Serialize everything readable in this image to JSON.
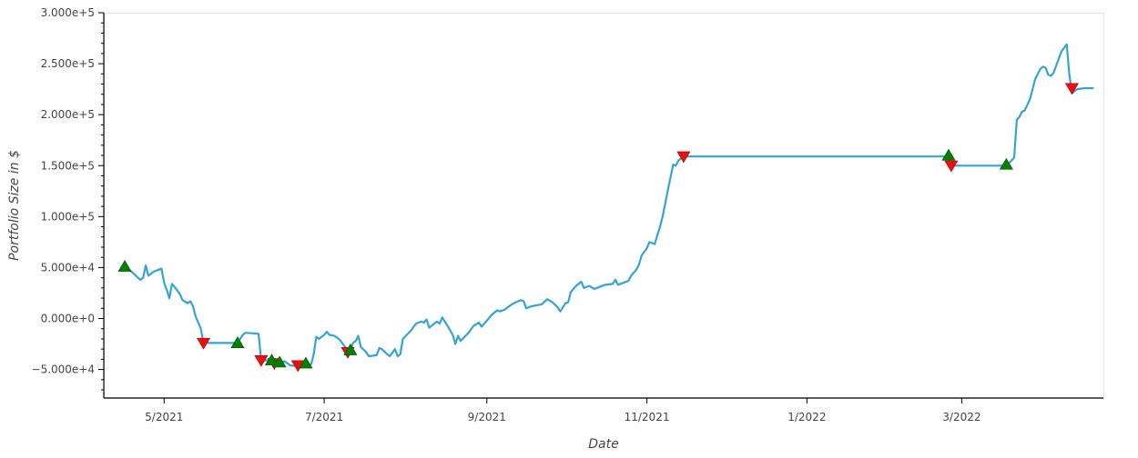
{
  "chart_data": {
    "type": "line",
    "title": "",
    "xlabel": "Date",
    "ylabel": "Portfolio Size in $",
    "y_unit": "$",
    "xlim": [
      "2021-04-08",
      "2022-04-24"
    ],
    "ylim": [
      -78000,
      300000
    ],
    "x_ticks": [
      {
        "date": "2021-05-01",
        "label": "5/2021"
      },
      {
        "date": "2021-07-01",
        "label": "7/2021"
      },
      {
        "date": "2021-09-01",
        "label": "9/2021"
      },
      {
        "date": "2021-11-01",
        "label": "11/2021"
      },
      {
        "date": "2022-01-01",
        "label": "1/2022"
      },
      {
        "date": "2022-03-01",
        "label": "3/2022"
      }
    ],
    "y_ticks": [
      {
        "value": 300000,
        "label": "3.000e+5"
      },
      {
        "value": 250000,
        "label": "2.500e+5"
      },
      {
        "value": 200000,
        "label": "2.000e+5"
      },
      {
        "value": 150000,
        "label": "1.500e+5"
      },
      {
        "value": 100000,
        "label": "1.000e+5"
      },
      {
        "value": 50000,
        "label": "5.000e+4"
      },
      {
        "value": 0,
        "label": "0.000e+0"
      },
      {
        "value": -50000,
        "label": "−5.000e+4"
      }
    ],
    "grid": false,
    "colors": {
      "line": "#35a3d6",
      "buy": "#008000",
      "sell": "#e8100f"
    },
    "series": [
      {
        "name": "",
        "points": [
          [
            "2021-04-16",
            51000
          ],
          [
            "2021-04-19",
            45000
          ],
          [
            "2021-04-21",
            40000
          ],
          [
            "2021-04-22",
            38000
          ],
          [
            "2021-04-23",
            40000
          ],
          [
            "2021-04-24",
            52000
          ],
          [
            "2021-04-25",
            42000
          ],
          [
            "2021-04-27",
            46000
          ],
          [
            "2021-04-29",
            48000
          ],
          [
            "2021-04-30",
            49000
          ],
          [
            "2021-05-01",
            35000
          ],
          [
            "2021-05-02",
            28000
          ],
          [
            "2021-05-03",
            20000
          ],
          [
            "2021-05-04",
            34000
          ],
          [
            "2021-05-05",
            31000
          ],
          [
            "2021-05-07",
            24000
          ],
          [
            "2021-05-08",
            18000
          ],
          [
            "2021-05-10",
            15000
          ],
          [
            "2021-05-11",
            17000
          ],
          [
            "2021-05-12",
            12000
          ],
          [
            "2021-05-13",
            2000
          ],
          [
            "2021-05-15",
            -10000
          ],
          [
            "2021-05-16",
            -24000
          ],
          [
            "2021-05-29",
            -24000
          ],
          [
            "2021-05-31",
            -16000
          ],
          [
            "2021-06-01",
            -14000
          ],
          [
            "2021-06-06",
            -15000
          ],
          [
            "2021-06-07",
            -41000
          ],
          [
            "2021-06-10",
            -41000
          ],
          [
            "2021-06-11",
            -44000
          ],
          [
            "2021-06-13",
            -43000
          ],
          [
            "2021-06-16",
            -42000
          ],
          [
            "2021-06-18",
            -46000
          ],
          [
            "2021-06-22",
            -47000
          ],
          [
            "2021-06-26",
            -45000
          ],
          [
            "2021-06-27",
            -35000
          ],
          [
            "2021-06-28",
            -18000
          ],
          [
            "2021-06-29",
            -20000
          ],
          [
            "2021-07-01",
            -16000
          ],
          [
            "2021-07-02",
            -13000
          ],
          [
            "2021-07-03",
            -16000
          ],
          [
            "2021-07-05",
            -17000
          ],
          [
            "2021-07-07",
            -21000
          ],
          [
            "2021-07-09",
            -28000
          ],
          [
            "2021-07-10",
            -33000
          ],
          [
            "2021-07-11",
            -31000
          ],
          [
            "2021-07-12",
            -24000
          ],
          [
            "2021-07-13",
            -22000
          ],
          [
            "2021-07-14",
            -17000
          ],
          [
            "2021-07-15",
            -28000
          ],
          [
            "2021-07-17",
            -33000
          ],
          [
            "2021-07-18",
            -37000
          ],
          [
            "2021-07-21",
            -36000
          ],
          [
            "2021-07-22",
            -29000
          ],
          [
            "2021-07-23",
            -30000
          ],
          [
            "2021-07-25",
            -35000
          ],
          [
            "2021-07-26",
            -37000
          ],
          [
            "2021-07-28",
            -30000
          ],
          [
            "2021-07-29",
            -37000
          ],
          [
            "2021-07-30",
            -35000
          ],
          [
            "2021-07-31",
            -20000
          ],
          [
            "2021-08-03",
            -12000
          ],
          [
            "2021-08-05",
            -5000
          ],
          [
            "2021-08-07",
            -3000
          ],
          [
            "2021-08-08",
            -4000
          ],
          [
            "2021-08-09",
            -1000
          ],
          [
            "2021-08-10",
            -9000
          ],
          [
            "2021-08-13",
            -3000
          ],
          [
            "2021-08-14",
            -5000
          ],
          [
            "2021-08-15",
            1000
          ],
          [
            "2021-08-17",
            -7000
          ],
          [
            "2021-08-19",
            -16000
          ],
          [
            "2021-08-20",
            -25000
          ],
          [
            "2021-08-21",
            -17000
          ],
          [
            "2021-08-22",
            -22000
          ],
          [
            "2021-08-25",
            -14000
          ],
          [
            "2021-08-27",
            -7000
          ],
          [
            "2021-08-29",
            -4000
          ],
          [
            "2021-08-30",
            -8000
          ],
          [
            "2021-09-01",
            -2000
          ],
          [
            "2021-09-03",
            4000
          ],
          [
            "2021-09-05",
            8000
          ],
          [
            "2021-09-06",
            7000
          ],
          [
            "2021-09-08",
            9000
          ],
          [
            "2021-09-10",
            13000
          ],
          [
            "2021-09-12",
            16000
          ],
          [
            "2021-09-14",
            18000
          ],
          [
            "2021-09-15",
            17000
          ],
          [
            "2021-09-16",
            10000
          ],
          [
            "2021-09-18",
            12000
          ],
          [
            "2021-09-20",
            13000
          ],
          [
            "2021-09-22",
            14000
          ],
          [
            "2021-09-24",
            19000
          ],
          [
            "2021-09-26",
            16000
          ],
          [
            "2021-09-28",
            11000
          ],
          [
            "2021-09-29",
            7000
          ],
          [
            "2021-10-01",
            15000
          ],
          [
            "2021-10-02",
            16000
          ],
          [
            "2021-10-03",
            26000
          ],
          [
            "2021-10-05",
            32000
          ],
          [
            "2021-10-07",
            36000
          ],
          [
            "2021-10-08",
            30000
          ],
          [
            "2021-10-10",
            32000
          ],
          [
            "2021-10-12",
            29000
          ],
          [
            "2021-10-14",
            31000
          ],
          [
            "2021-10-16",
            33000
          ],
          [
            "2021-10-19",
            34000
          ],
          [
            "2021-10-20",
            38000
          ],
          [
            "2021-10-21",
            33000
          ],
          [
            "2021-10-23",
            35000
          ],
          [
            "2021-10-25",
            37000
          ],
          [
            "2021-10-26",
            42000
          ],
          [
            "2021-10-28",
            48000
          ],
          [
            "2021-10-29",
            53000
          ],
          [
            "2021-10-30",
            62000
          ],
          [
            "2021-11-01",
            69000
          ],
          [
            "2021-11-02",
            75000
          ],
          [
            "2021-11-04",
            73000
          ],
          [
            "2021-11-05",
            82000
          ],
          [
            "2021-11-06",
            90000
          ],
          [
            "2021-11-07",
            100000
          ],
          [
            "2021-11-09",
            126000
          ],
          [
            "2021-11-11",
            151000
          ],
          [
            "2021-11-12",
            150000
          ],
          [
            "2021-11-13",
            155000
          ],
          [
            "2021-11-15",
            159000
          ],
          [
            "2022-02-24",
            159000
          ],
          [
            "2022-02-25",
            150000
          ],
          [
            "2022-03-18",
            150000
          ],
          [
            "2022-03-20",
            155000
          ],
          [
            "2022-03-21",
            158000
          ],
          [
            "2022-03-22",
            195000
          ],
          [
            "2022-03-23",
            198000
          ],
          [
            "2022-03-24",
            203000
          ],
          [
            "2022-03-25",
            204000
          ],
          [
            "2022-03-27",
            215000
          ],
          [
            "2022-03-29",
            235000
          ],
          [
            "2022-03-31",
            245000
          ],
          [
            "2022-04-01",
            247000
          ],
          [
            "2022-04-02",
            246000
          ],
          [
            "2022-04-03",
            239000
          ],
          [
            "2022-04-04",
            238000
          ],
          [
            "2022-04-05",
            241000
          ],
          [
            "2022-04-08",
            262000
          ],
          [
            "2022-04-10",
            269000
          ],
          [
            "2022-04-11",
            240000
          ],
          [
            "2022-04-12",
            221000
          ],
          [
            "2022-04-14",
            225000
          ],
          [
            "2022-04-17",
            226000
          ],
          [
            "2022-04-20",
            226000
          ]
        ]
      }
    ],
    "buy_signals": [
      [
        "2021-04-16",
        51000
      ],
      [
        "2021-05-29",
        -24000
      ],
      [
        "2021-06-11",
        -41000
      ],
      [
        "2021-06-14",
        -43000
      ],
      [
        "2021-06-24",
        -44000
      ],
      [
        "2021-07-11",
        -31000
      ],
      [
        "2022-02-24",
        160000
      ],
      [
        "2022-03-18",
        151000
      ]
    ],
    "sell_signals": [
      [
        "2021-05-16",
        -24000
      ],
      [
        "2021-06-07",
        -41000
      ],
      [
        "2021-06-12",
        -44000
      ],
      [
        "2021-06-21",
        -46000
      ],
      [
        "2021-07-10",
        -33000
      ],
      [
        "2021-11-15",
        159000
      ],
      [
        "2022-02-25",
        150000
      ],
      [
        "2022-04-12",
        226000
      ]
    ]
  }
}
